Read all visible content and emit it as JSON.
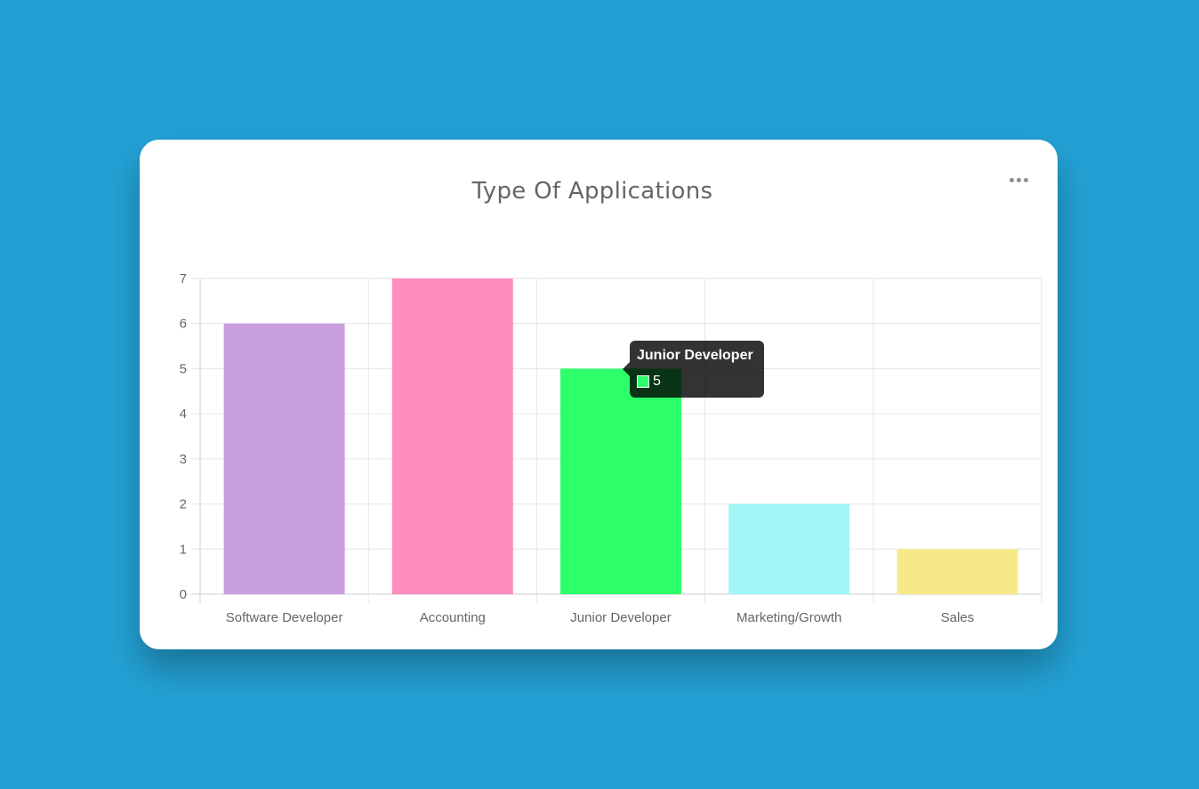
{
  "card": {
    "title": "Type Of Applications",
    "more_icon": "more-horizontal-icon"
  },
  "chart_data": {
    "type": "bar",
    "title": "Type Of Applications",
    "categories": [
      "Software Developer",
      "Accounting",
      "Junior Developer",
      "Marketing/Growth",
      "Sales"
    ],
    "values": [
      6,
      7,
      5,
      2,
      1
    ],
    "colors": [
      "#c89ede",
      "#ff8dc0",
      "#2dff6b",
      "#a1f7f7",
      "#f7e98a"
    ],
    "ylim": [
      0,
      7
    ],
    "yticks": [
      "0",
      "1",
      "2",
      "3",
      "4",
      "5",
      "6",
      "7"
    ],
    "grid": true,
    "legend": "none"
  },
  "tooltip": {
    "title": "Junior Developer",
    "value": "5",
    "swatch_color": "#2dff6b"
  }
}
